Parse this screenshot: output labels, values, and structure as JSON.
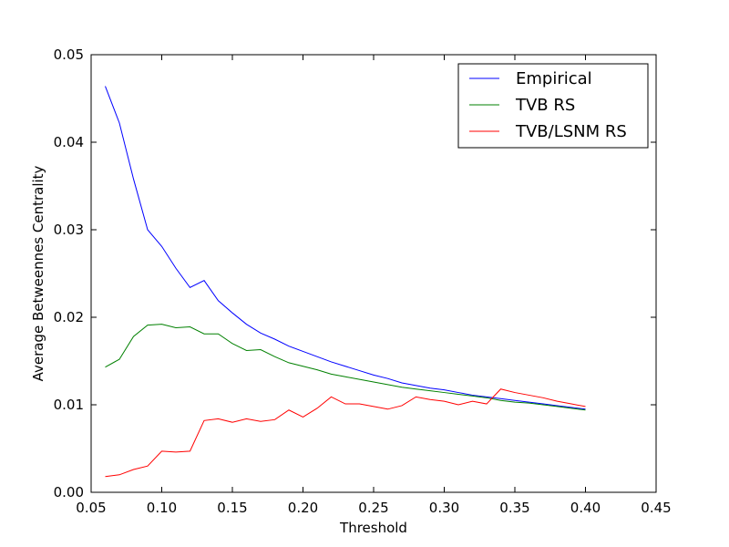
{
  "chart_data": {
    "type": "line",
    "xlabel": "Threshold",
    "ylabel": "Average Betweennes Centrality",
    "xlim": [
      0.05,
      0.45
    ],
    "ylim": [
      0.0,
      0.05
    ],
    "xticks": [
      "0.05",
      "0.10",
      "0.15",
      "0.20",
      "0.25",
      "0.30",
      "0.35",
      "0.40",
      "0.45"
    ],
    "yticks": [
      "0.00",
      "0.01",
      "0.02",
      "0.03",
      "0.04",
      "0.05"
    ],
    "grid": false,
    "legend_position": "top-right",
    "x": [
      0.06,
      0.07,
      0.08,
      0.09,
      0.1,
      0.11,
      0.12,
      0.13,
      0.14,
      0.15,
      0.16,
      0.17,
      0.18,
      0.19,
      0.2,
      0.21,
      0.22,
      0.23,
      0.24,
      0.25,
      0.26,
      0.27,
      0.28,
      0.29,
      0.3,
      0.31,
      0.32,
      0.33,
      0.34,
      0.35,
      0.36,
      0.37,
      0.38,
      0.39,
      0.4
    ],
    "series": [
      {
        "name": "Empirical",
        "color": "#0000ff",
        "values": [
          0.0464,
          0.0422,
          0.0358,
          0.03,
          0.0281,
          0.0256,
          0.0234,
          0.0242,
          0.0219,
          0.0205,
          0.0192,
          0.0182,
          0.0175,
          0.0167,
          0.0161,
          0.0155,
          0.0149,
          0.0144,
          0.0139,
          0.0134,
          0.013,
          0.0125,
          0.0122,
          0.0119,
          0.0117,
          0.0114,
          0.0111,
          0.0109,
          0.0107,
          0.0105,
          0.0103,
          0.0101,
          0.0099,
          0.0097,
          0.0095
        ]
      },
      {
        "name": "TVB RS",
        "color": "#008000",
        "values": [
          0.0143,
          0.0152,
          0.0178,
          0.0191,
          0.0192,
          0.0188,
          0.0189,
          0.0181,
          0.0181,
          0.017,
          0.0162,
          0.0163,
          0.0155,
          0.0148,
          0.0144,
          0.014,
          0.0135,
          0.0132,
          0.0129,
          0.0126,
          0.0123,
          0.012,
          0.0118,
          0.0116,
          0.0114,
          0.0112,
          0.011,
          0.0108,
          0.0105,
          0.0103,
          0.0102,
          0.01,
          0.0098,
          0.0096,
          0.0094
        ]
      },
      {
        "name": "TVB/LSNM RS",
        "color": "#ff0000",
        "values": [
          0.0018,
          0.002,
          0.0026,
          0.003,
          0.0047,
          0.0046,
          0.0047,
          0.0082,
          0.0084,
          0.008,
          0.0084,
          0.0081,
          0.0083,
          0.0094,
          0.0086,
          0.0096,
          0.0109,
          0.0101,
          0.0101,
          0.0098,
          0.0095,
          0.0099,
          0.0109,
          0.0106,
          0.0104,
          0.01,
          0.0104,
          0.0101,
          0.0118,
          0.0114,
          0.0111,
          0.0108,
          0.0104,
          0.0101,
          0.0098
        ]
      }
    ]
  }
}
